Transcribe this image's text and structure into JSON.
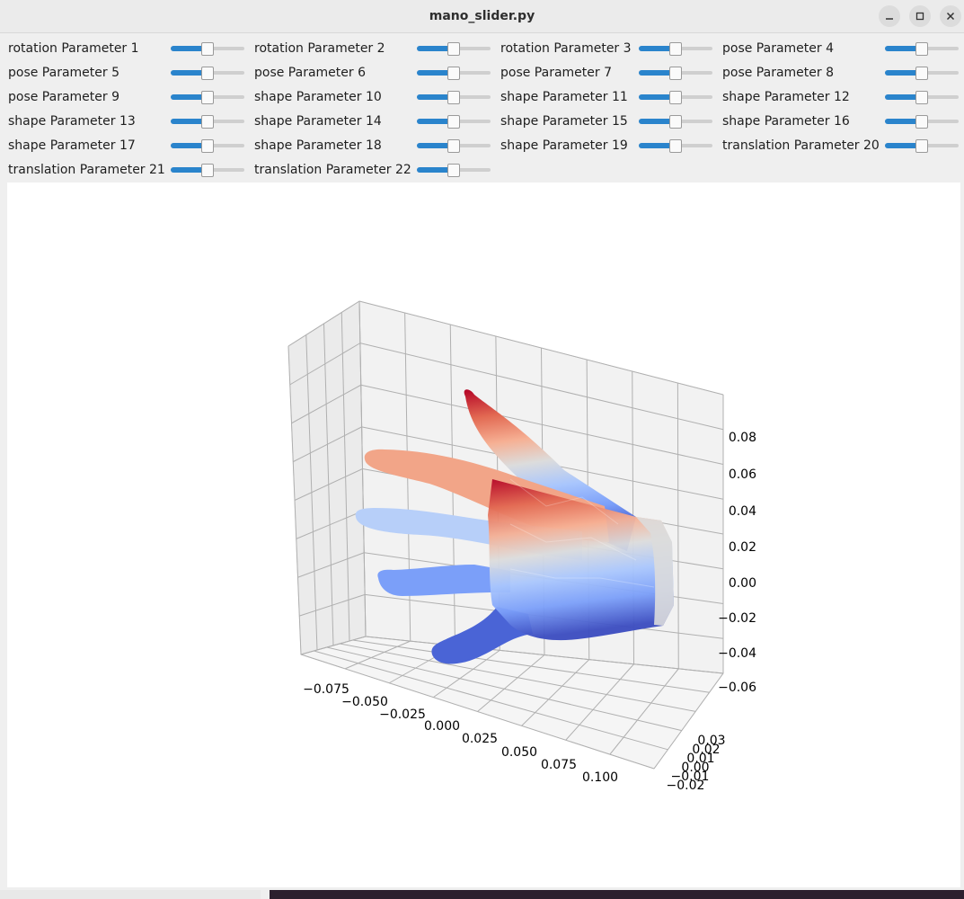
{
  "window": {
    "title": "mano_slider.py",
    "minimize_icon": "minimize-icon",
    "maximize_icon": "maximize-icon",
    "close_icon": "close-icon"
  },
  "parameters": [
    {
      "label": "rotation Parameter 1",
      "value": 0.5
    },
    {
      "label": "rotation Parameter 2",
      "value": 0.5
    },
    {
      "label": "rotation Parameter 3",
      "value": 0.5
    },
    {
      "label": "pose Parameter 4",
      "value": 0.5
    },
    {
      "label": "pose Parameter 5",
      "value": 0.5
    },
    {
      "label": "pose Parameter 6",
      "value": 0.5
    },
    {
      "label": "pose Parameter 7",
      "value": 0.5
    },
    {
      "label": "pose Parameter 8",
      "value": 0.5
    },
    {
      "label": "pose Parameter 9",
      "value": 0.5
    },
    {
      "label": "shape Parameter 10",
      "value": 0.5
    },
    {
      "label": "shape Parameter 11",
      "value": 0.5
    },
    {
      "label": "shape Parameter 12",
      "value": 0.5
    },
    {
      "label": "shape Parameter 13",
      "value": 0.5
    },
    {
      "label": "shape Parameter 14",
      "value": 0.5
    },
    {
      "label": "shape Parameter 15",
      "value": 0.5
    },
    {
      "label": "shape Parameter 16",
      "value": 0.5
    },
    {
      "label": "shape Parameter 17",
      "value": 0.5
    },
    {
      "label": "shape Parameter 18",
      "value": 0.5
    },
    {
      "label": "shape Parameter 19",
      "value": 0.5
    },
    {
      "label": "translation Parameter 20",
      "value": 0.5
    },
    {
      "label": "translation Parameter 21",
      "value": 0.5
    },
    {
      "label": "translation Parameter 22",
      "value": 0.5
    }
  ],
  "chart_data": {
    "type": "surface3d",
    "colormap": "coolwarm",
    "x_ticks": [
      "−0.075",
      "−0.050",
      "−0.025",
      "0.000",
      "0.025",
      "0.050",
      "0.075",
      "0.100"
    ],
    "y_ticks": [
      "−0.02",
      "−0.01",
      "0.00",
      "0.01",
      "0.02",
      "0.03"
    ],
    "z_ticks": [
      "−0.06",
      "−0.04",
      "−0.02",
      "0.00",
      "0.02",
      "0.04",
      "0.06",
      "0.08"
    ],
    "grid": true,
    "colors": {
      "low": "#3b4cc0",
      "mid": "#dddcdc",
      "high": "#b40426"
    }
  }
}
